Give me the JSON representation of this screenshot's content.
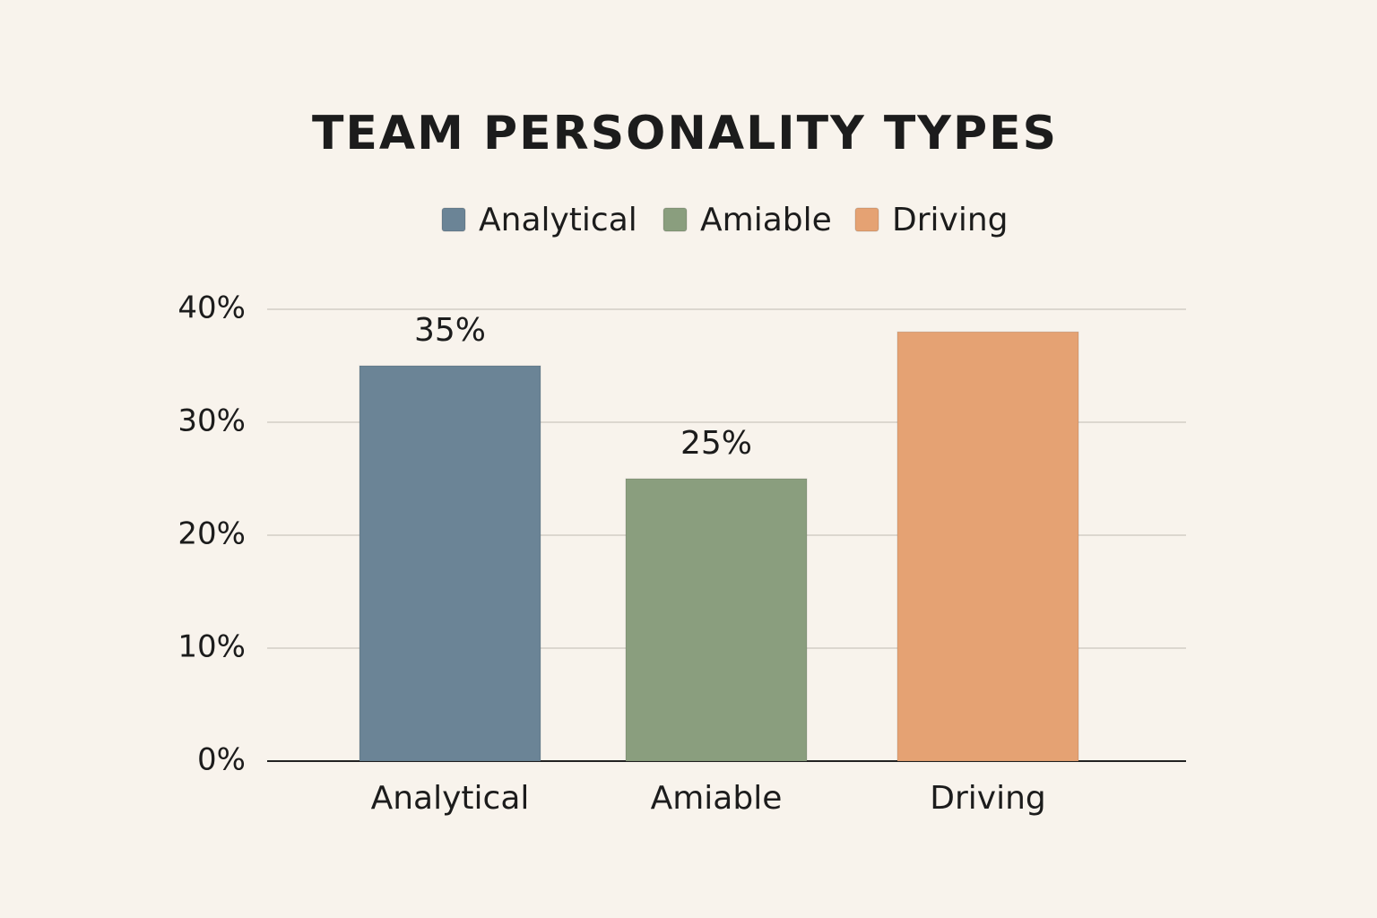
{
  "chart_data": {
    "type": "bar",
    "title": "TEAM PERSONALITY TYPES",
    "categories": [
      "Analytical",
      "Amiable",
      "Driving"
    ],
    "values": [
      35,
      25,
      38
    ],
    "value_labels": [
      "35%",
      "25%",
      null
    ],
    "colors": [
      "#6b8496",
      "#8a9e7e",
      "#e5a273"
    ],
    "ylim": [
      0,
      40
    ],
    "yticks": [
      {
        "value": 0,
        "label": "0%"
      },
      {
        "value": 10,
        "label": "10%"
      },
      {
        "value": 20,
        "label": "20%"
      },
      {
        "value": 30,
        "label": "30%"
      },
      {
        "value": 40,
        "label": "40%"
      }
    ],
    "grid": true,
    "legend": "top"
  }
}
